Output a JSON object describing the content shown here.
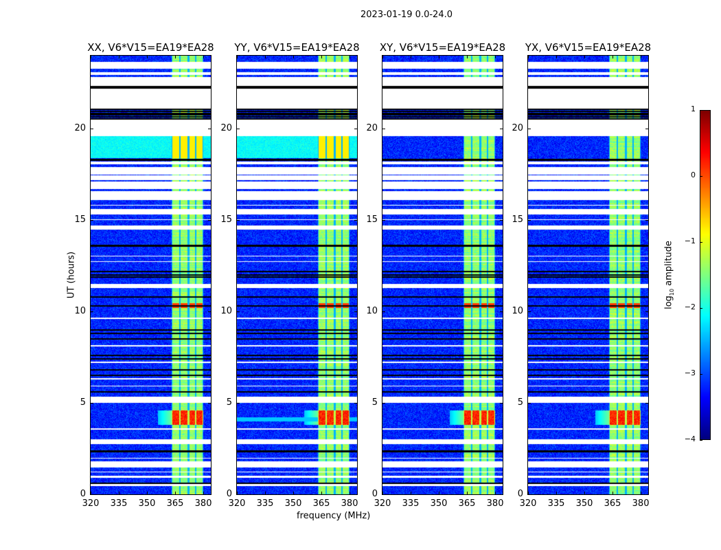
{
  "suptitle": "2023-01-19 0.0-24.0",
  "chart_data": {
    "type": "heatmap",
    "xlabel": "frequency (MHz)",
    "ylabel": "UT (hours)",
    "xlim": [
      320,
      384
    ],
    "ylim": [
      0,
      24
    ],
    "xticks": [
      320,
      335,
      350,
      365,
      380
    ],
    "yticks": [
      0,
      5,
      10,
      15,
      20
    ],
    "panels": [
      {
        "title": "XX, V6*V15=EA19*EA28",
        "pol": "XX"
      },
      {
        "title": "YY, V6*V15=EA19*EA28",
        "pol": "YY"
      },
      {
        "title": "XY, V6*V15=EA19*EA28",
        "pol": "XY"
      },
      {
        "title": "YX, V6*V15=EA19*EA28",
        "pol": "YX"
      }
    ],
    "colorbar": {
      "label": "log",
      "label_sub": "10",
      "label_rest": " amplitude",
      "range": [
        -4,
        1
      ],
      "ticks": [
        1,
        0,
        -1,
        -2,
        -3,
        -4
      ],
      "tick_labels": [
        "1",
        "0",
        "−1",
        "−2",
        "−3",
        "−4"
      ],
      "colormap": "jet"
    },
    "signal_band_mhz": [
      363,
      380
    ],
    "subband_edges_mhz": [
      363,
      367.5,
      372,
      376,
      380
    ],
    "background_log_amp": -3.2,
    "band_log_amp": -1.4,
    "flare_hours": [
      3.8,
      4.6
    ],
    "flare_log_amp": 0.2,
    "flagged_hours": [
      [
        0.45,
        0.55
      ],
      [
        0.9,
        1.0
      ],
      [
        1.2,
        1.25
      ],
      [
        1.45,
        1.8
      ],
      [
        1.95,
        2.0
      ],
      [
        2.75,
        3.0
      ],
      [
        3.55,
        3.6
      ],
      [
        5.0,
        5.35
      ],
      [
        5.9,
        5.95
      ],
      [
        6.3,
        6.35
      ],
      [
        7.2,
        7.25
      ],
      [
        8.1,
        8.15
      ],
      [
        9.6,
        9.65
      ],
      [
        11.3,
        11.5
      ],
      [
        12.7,
        12.75
      ],
      [
        13.0,
        13.05
      ],
      [
        14.5,
        14.7
      ],
      [
        15.0,
        15.05
      ],
      [
        15.3,
        15.6
      ],
      [
        15.8,
        15.85
      ],
      [
        16.1,
        16.6
      ],
      [
        16.7,
        17.1
      ],
      [
        17.2,
        17.45
      ],
      [
        17.5,
        17.9
      ],
      [
        18.05,
        18.2
      ],
      [
        19.6,
        20.5
      ],
      [
        21.1,
        22.2
      ],
      [
        22.35,
        22.85
      ],
      [
        22.95,
        23.1
      ],
      [
        23.3,
        23.65
      ]
    ],
    "blank_black_hours": [
      0.6,
      2.35,
      5.6,
      6.5,
      6.8,
      7.4,
      7.6,
      8.5,
      8.8,
      9.0,
      10.3,
      10.8,
      11.9,
      12.0,
      12.2,
      13.6,
      18.3,
      20.55,
      20.65,
      20.75,
      20.85,
      20.95,
      21.05,
      22.25,
      22.3
    ],
    "cyan_background_hours": [
      18.4,
      19.6
    ]
  }
}
